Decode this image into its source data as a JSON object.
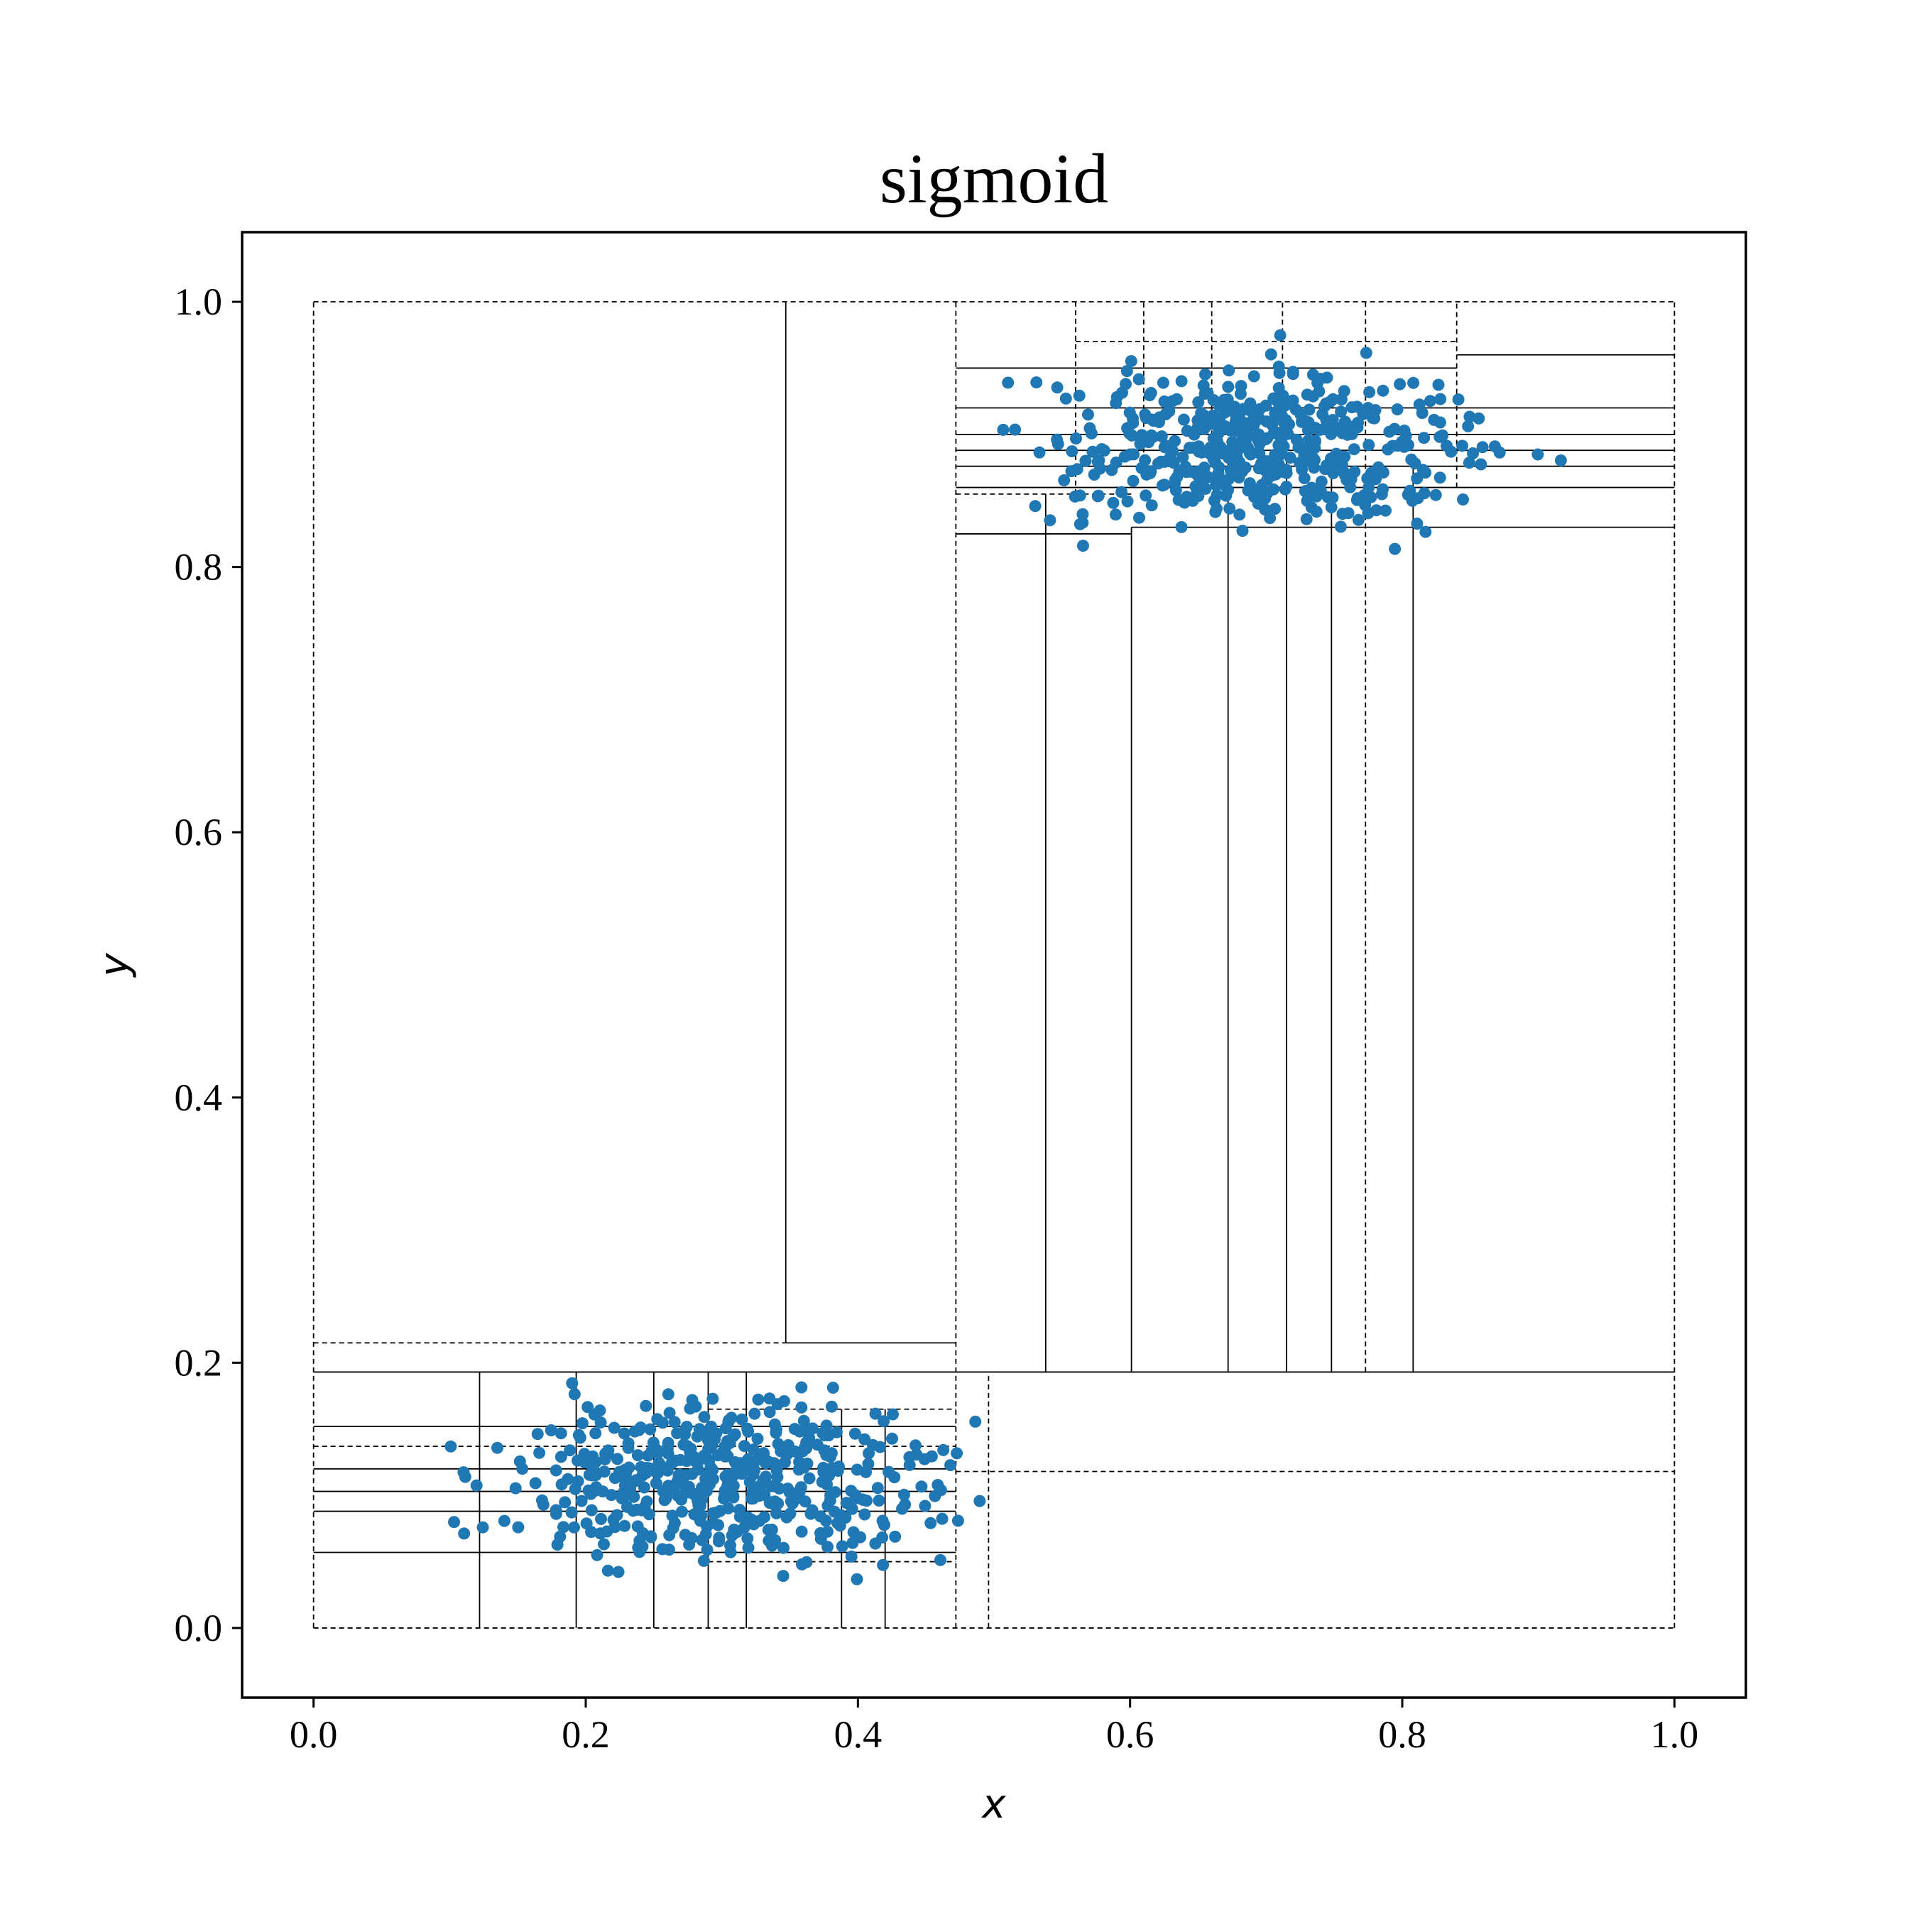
{
  "chart_data": {
    "type": "scatter",
    "title": "sigmoid",
    "xlabel": "x",
    "ylabel": "y",
    "xlim": [
      -0.0525,
      1.0525
    ],
    "ylim": [
      -0.0525,
      1.0525
    ],
    "xticks": [
      "0.0",
      "0.2",
      "0.4",
      "0.6",
      "0.8",
      "1.0"
    ],
    "yticks": [
      "0.0",
      "0.2",
      "0.4",
      "0.6",
      "0.8",
      "1.0"
    ],
    "grid": false,
    "legend": "none",
    "point_color": "#1f77b4",
    "clusters": [
      {
        "name": "lower-left",
        "count": 500,
        "x_range": [
          0.0,
          0.6
        ],
        "y_range": [
          0.0,
          0.23
        ],
        "x_center": 0.3,
        "y_center": 0.11
      },
      {
        "name": "upper-right",
        "count": 500,
        "x_range": [
          0.39,
          1.0
        ],
        "y_range": [
          0.77,
          1.0
        ],
        "x_center": 0.7,
        "y_center": 0.89
      }
    ],
    "partition_lines": {
      "solid_vertical": [
        {
          "x": 0.347,
          "y0": 0.215,
          "y1": 1.0
        },
        {
          "x": 0.538,
          "y0": 0.193,
          "y1": 0.855
        },
        {
          "x": 0.601,
          "y0": 0.193,
          "y1": 0.83
        },
        {
          "x": 0.672,
          "y0": 0.193,
          "y1": 0.88
        },
        {
          "x": 0.715,
          "y0": 0.193,
          "y1": 0.88
        },
        {
          "x": 0.748,
          "y0": 0.193,
          "y1": 0.88
        },
        {
          "x": 0.808,
          "y0": 0.193,
          "y1": 0.88
        },
        {
          "x": 0.122,
          "y0": 0.0,
          "y1": 0.193
        },
        {
          "x": 0.193,
          "y0": 0.0,
          "y1": 0.193
        },
        {
          "x": 0.25,
          "y0": 0.0,
          "y1": 0.193
        },
        {
          "x": 0.29,
          "y0": 0.0,
          "y1": 0.193
        },
        {
          "x": 0.318,
          "y0": 0.0,
          "y1": 0.193
        },
        {
          "x": 0.388,
          "y0": 0.0,
          "y1": 0.165
        },
        {
          "x": 0.42,
          "y0": 0.0,
          "y1": 0.165
        }
      ],
      "dashed_vertical": [
        {
          "x": 0.0,
          "y0": 0.0,
          "y1": 1.0
        },
        {
          "x": 0.472,
          "y0": 0.0,
          "y1": 1.0
        },
        {
          "x": 1.0,
          "y0": 0.0,
          "y1": 1.0
        },
        {
          "x": 0.496,
          "y0": 0.0,
          "y1": 0.193
        },
        {
          "x": 0.56,
          "y0": 0.855,
          "y1": 1.0
        },
        {
          "x": 0.61,
          "y0": 0.88,
          "y1": 1.0
        },
        {
          "x": 0.66,
          "y0": 0.88,
          "y1": 1.0
        },
        {
          "x": 0.712,
          "y0": 0.88,
          "y1": 1.0
        },
        {
          "x": 0.773,
          "y0": 0.193,
          "y1": 1.0
        },
        {
          "x": 0.84,
          "y0": 0.86,
          "y1": 1.0
        }
      ],
      "solid_horizontal": [
        {
          "y": 0.193,
          "x0": 0.0,
          "x1": 1.0
        },
        {
          "y": 0.215,
          "x0": 0.347,
          "x1": 0.472
        },
        {
          "y": 0.152,
          "x0": 0.0,
          "x1": 0.472
        },
        {
          "y": 0.12,
          "x0": 0.0,
          "x1": 0.472
        },
        {
          "y": 0.103,
          "x0": 0.0,
          "x1": 0.472
        },
        {
          "y": 0.088,
          "x0": 0.0,
          "x1": 0.472
        },
        {
          "y": 0.057,
          "x0": 0.0,
          "x1": 0.472
        },
        {
          "y": 0.95,
          "x0": 0.472,
          "x1": 0.84
        },
        {
          "y": 0.96,
          "x0": 0.84,
          "x1": 1.0
        },
        {
          "y": 0.92,
          "x0": 0.472,
          "x1": 1.0
        },
        {
          "y": 0.9,
          "x0": 0.472,
          "x1": 1.0
        },
        {
          "y": 0.888,
          "x0": 0.472,
          "x1": 1.0
        },
        {
          "y": 0.876,
          "x0": 0.472,
          "x1": 1.0
        },
        {
          "y": 0.86,
          "x0": 0.472,
          "x1": 1.0
        },
        {
          "y": 0.83,
          "x0": 0.601,
          "x1": 1.0
        },
        {
          "y": 0.825,
          "x0": 0.472,
          "x1": 0.601
        }
      ],
      "dashed_horizontal": [
        {
          "y": 1.0,
          "x0": 0.0,
          "x1": 1.0
        },
        {
          "y": 0.0,
          "x0": 0.0,
          "x1": 1.0
        },
        {
          "y": 0.215,
          "x0": 0.0,
          "x1": 0.347
        },
        {
          "y": 0.118,
          "x0": 0.472,
          "x1": 1.0
        },
        {
          "y": 0.137,
          "x0": 0.0,
          "x1": 0.472
        },
        {
          "y": 0.165,
          "x0": 0.29,
          "x1": 0.472
        },
        {
          "y": 0.05,
          "x0": 0.29,
          "x1": 0.472
        },
        {
          "y": 0.855,
          "x0": 0.472,
          "x1": 0.601
        },
        {
          "y": 0.97,
          "x0": 0.56,
          "x1": 0.84
        }
      ]
    }
  }
}
